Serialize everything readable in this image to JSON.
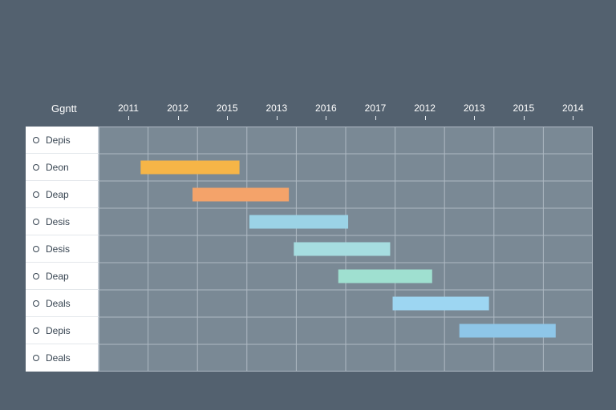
{
  "chart_data": {
    "type": "gantt",
    "title": "Ggntt",
    "xlabel": "",
    "ylabel": "",
    "grid": true,
    "x_tick_labels": [
      "2011",
      "2012",
      "2015",
      "2013",
      "2016",
      "2017",
      "2012",
      "2013",
      "2015",
      "2014"
    ],
    "tasks": [
      {
        "label": "Depis",
        "start": null,
        "end": null,
        "color": null
      },
      {
        "label": "Deon",
        "start": 0.85,
        "end": 2.85,
        "color": "#f6b547"
      },
      {
        "label": "Deap",
        "start": 1.9,
        "end": 3.85,
        "color": "#f4a36a"
      },
      {
        "label": "Desis",
        "start": 3.05,
        "end": 5.05,
        "color": "#9bd3e6"
      },
      {
        "label": "Desis",
        "start": 3.95,
        "end": 5.9,
        "color": "#a6dde0"
      },
      {
        "label": "Deap",
        "start": 4.85,
        "end": 6.75,
        "color": "#9fe0d0"
      },
      {
        "label": "Deals",
        "start": 5.95,
        "end": 7.9,
        "color": "#9dd6f2"
      },
      {
        "label": "Depis",
        "start": 7.3,
        "end": 9.25,
        "color": "#8ec6e8"
      },
      {
        "label": "Deals",
        "start": null,
        "end": null,
        "color": null
      }
    ]
  }
}
